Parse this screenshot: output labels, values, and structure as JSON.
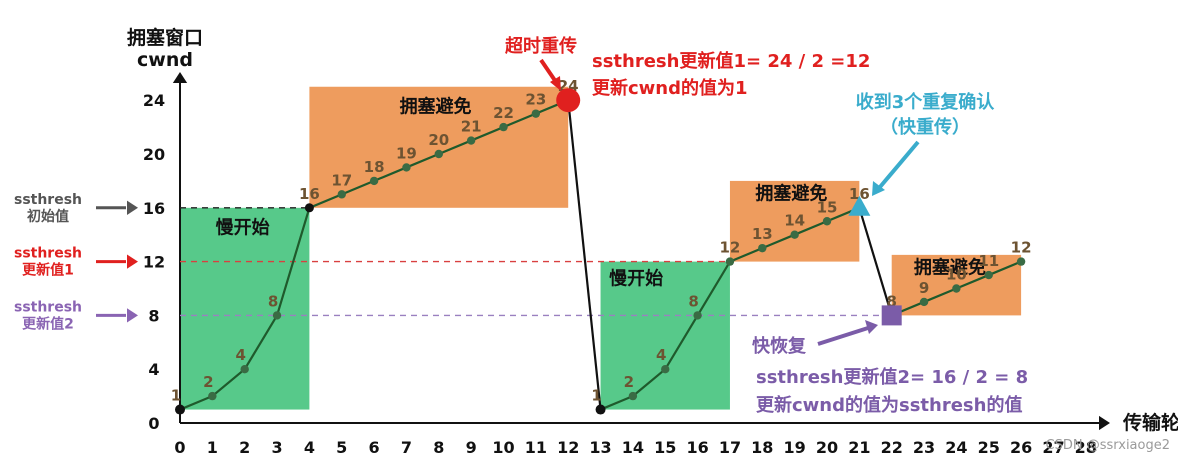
{
  "chart_data": {
    "type": "line",
    "ylabel": "拥塞窗口\ncwnd",
    "xlabel": "传输轮次",
    "x_ticks": [
      "0",
      "1",
      "2",
      "3",
      "4",
      "5",
      "6",
      "7",
      "8",
      "9",
      "10",
      "11",
      "12",
      "13",
      "14",
      "15",
      "16",
      "17",
      "18",
      "19",
      "20",
      "21",
      "22",
      "23",
      "24",
      "25",
      "26",
      "27",
      "28"
    ],
    "y_ticks": [
      "0",
      "4",
      "8",
      "12",
      "16",
      "20",
      "24"
    ],
    "xlim": [
      0,
      28
    ],
    "ylim": [
      0,
      26
    ],
    "series": [
      {
        "x": [
          0,
          1,
          2,
          3,
          4,
          5,
          6,
          7,
          8,
          9,
          10,
          11,
          12
        ],
        "y": [
          1,
          2,
          4,
          8,
          16,
          17,
          18,
          19,
          20,
          21,
          22,
          23,
          24
        ],
        "labels": [
          "1",
          "2",
          "4",
          "8",
          "16",
          "17",
          "18",
          "19",
          "20",
          "21",
          "22",
          "23",
          "24"
        ]
      },
      {
        "x": [
          13,
          14,
          15,
          16,
          17,
          18,
          19,
          20,
          21
        ],
        "y": [
          1,
          2,
          4,
          8,
          12,
          13,
          14,
          15,
          16
        ],
        "labels": [
          "1",
          "2",
          "4",
          "8",
          "12",
          "13",
          "14",
          "15",
          "16"
        ]
      },
      {
        "x": [
          22,
          23,
          24,
          25,
          26
        ],
        "y": [
          8,
          9,
          10,
          11,
          12
        ],
        "labels": [
          "8",
          "9",
          "10",
          "11",
          "12"
        ]
      }
    ],
    "drop_segments": [
      {
        "from": [
          12,
          24
        ],
        "to": [
          13,
          1
        ]
      },
      {
        "from": [
          21,
          16
        ],
        "to": [
          22,
          8
        ]
      }
    ],
    "regions": [
      {
        "label": "慢开始",
        "x": [
          0,
          4
        ],
        "y": [
          1,
          16
        ],
        "color": "#57c98a"
      },
      {
        "label": "拥塞避免",
        "x": [
          4,
          12
        ],
        "y": [
          16,
          25
        ],
        "color": "#ee9c5e"
      },
      {
        "label": "慢开始",
        "x": [
          13,
          17
        ],
        "y": [
          1,
          12
        ],
        "color": "#57c98a"
      },
      {
        "label": "拥塞避免",
        "x": [
          17,
          21
        ],
        "y": [
          12,
          18
        ],
        "color": "#ee9c5e"
      },
      {
        "label": "拥塞避免",
        "x": [
          22,
          26
        ],
        "y": [
          8,
          12.5
        ],
        "color": "#ee9c5e"
      }
    ],
    "thresholds": [
      {
        "value": 16,
        "label": "ssthresh\n初始值",
        "color": "#555555",
        "dash_color": "#222222"
      },
      {
        "value": 12,
        "label": "ssthresh\n更新值1",
        "color": "#e0201f",
        "dash_color": "#d94040"
      },
      {
        "value": 8,
        "label": "ssthresh\n更新值2",
        "color": "#8a64b3",
        "dash_color": "#9a80c0"
      }
    ],
    "annotations": {
      "timeout": {
        "text": "超时重传",
        "color": "#e0201f",
        "at": [
          12,
          24
        ]
      },
      "timeout_note": {
        "lines": [
          "ssthresh更新值1= 24 / 2 =12",
          "更新cwnd的值为1"
        ],
        "color": "#e0201f"
      },
      "triple_ack": {
        "lines": [
          "收到3个重复确认",
          "（快重传）"
        ],
        "color": "#3aaccc",
        "at": [
          21,
          16
        ]
      },
      "fast_recovery": {
        "text": "快恢复",
        "color": "#7b5ca8",
        "at": [
          22,
          8
        ]
      },
      "fast_recovery_note": {
        "lines": [
          "ssthresh更新值2= 16 / 2 = 8",
          "更新cwnd的值为ssthresh的值"
        ],
        "color": "#7b5ca8"
      }
    },
    "colors": {
      "line": "#1f5a2c",
      "point_fill": "#3a6b44",
      "label_text": "#6d5332",
      "axis": "#111111"
    }
  },
  "watermark": "CSDN @ssrxiaoge2"
}
